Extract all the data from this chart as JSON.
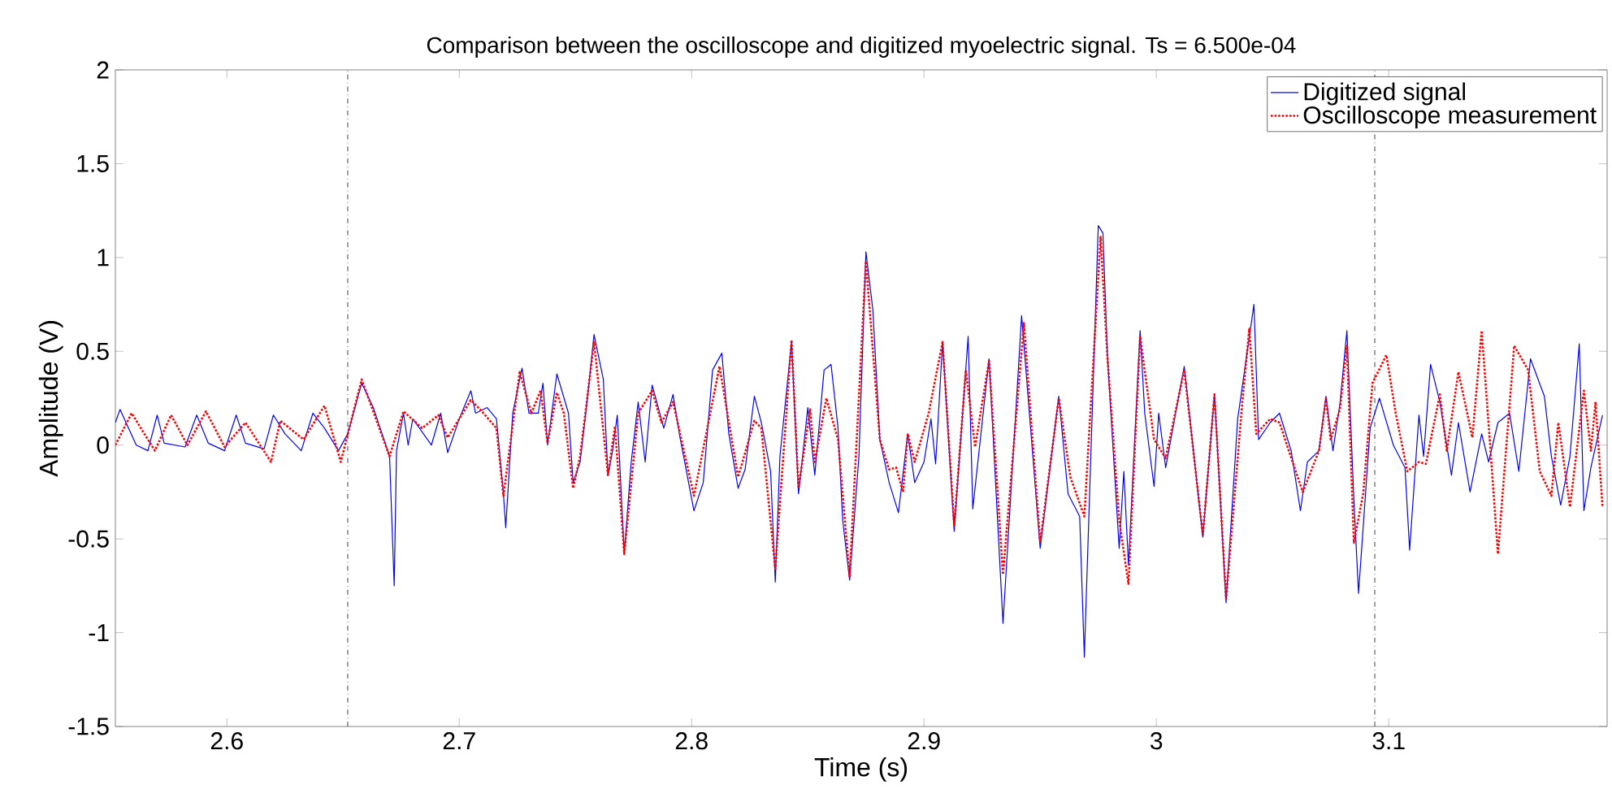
{
  "chart_data": {
    "type": "line",
    "title": "Comparison between the oscilloscope and digitized myoelectric signal. Ts = 6.500e-04",
    "xlabel": "Time (s)",
    "ylabel": "Amplitude (V)",
    "xlim": [
      2.552,
      3.194
    ],
    "ylim": [
      -1.5,
      2
    ],
    "xticks": [
      2.6,
      2.7,
      2.8,
      2.9,
      3,
      3.1
    ],
    "yticks": [
      -1.5,
      -1,
      -0.5,
      0,
      0.5,
      1,
      1.5,
      2
    ],
    "legend": "top right",
    "marker": "none",
    "ref_lines": [
      {
        "axis": "x",
        "value": 2.652,
        "color": "#404040",
        "line_style": "dashdot"
      },
      {
        "axis": "x",
        "value": 3.094,
        "color": "#404040",
        "line_style": "dashdot"
      }
    ],
    "series": [
      {
        "name": "Digitized signal",
        "color": "#0000ff",
        "line_style": "solid",
        "x": [
          2.552,
          2.554,
          2.561,
          2.566,
          2.57,
          2.573,
          2.582,
          2.587,
          2.592,
          2.599,
          2.604,
          2.608,
          2.616,
          2.62,
          2.625,
          2.632,
          2.637,
          2.642,
          2.648,
          2.652,
          2.658,
          2.663,
          2.67,
          2.672,
          2.673,
          2.676,
          2.678,
          2.68,
          2.688,
          2.692,
          2.695,
          2.7,
          2.705,
          2.707,
          2.712,
          2.716,
          2.719,
          2.72,
          2.723,
          2.727,
          2.73,
          2.734,
          2.736,
          2.738,
          2.742,
          2.747,
          2.749,
          2.752,
          2.755,
          2.758,
          2.762,
          2.764,
          2.766,
          2.768,
          2.771,
          2.774,
          2.777,
          2.78,
          2.783,
          2.785,
          2.788,
          2.792,
          2.795,
          2.801,
          2.805,
          2.809,
          2.813,
          2.816,
          2.82,
          2.823,
          2.827,
          2.83,
          2.834,
          2.836,
          2.838,
          2.843,
          2.846,
          2.85,
          2.853,
          2.857,
          2.86,
          2.863,
          2.865,
          2.868,
          2.872,
          2.875,
          2.878,
          2.881,
          2.885,
          2.889,
          2.893,
          2.896,
          2.9,
          2.903,
          2.905,
          2.908,
          2.913,
          2.919,
          2.921,
          2.928,
          2.934,
          2.942,
          2.95,
          2.958,
          2.962,
          2.967,
          2.969,
          2.975,
          2.977,
          2.979,
          2.984,
          2.986,
          2.988,
          2.993,
          2.995,
          2.999,
          3.001,
          3.004,
          3.012,
          3.02,
          3.025,
          3.03,
          3.035,
          3.042,
          3.044,
          3.049,
          3.053,
          3.058,
          3.062,
          3.065,
          3.07,
          3.073,
          3.076,
          3.079,
          3.082,
          3.085,
          3.087,
          3.092,
          3.096,
          3.102,
          3.107,
          3.109,
          3.113,
          3.115,
          3.118,
          3.122,
          3.127,
          3.13,
          3.135,
          3.14,
          3.143,
          3.147,
          3.152,
          3.156,
          3.161,
          3.167,
          3.17,
          3.174,
          3.178,
          3.182,
          3.184,
          3.187,
          3.192
        ],
        "values": [
          0.12,
          0.19,
          0,
          -0.03,
          0.16,
          0.01,
          -0.01,
          0.16,
          0.01,
          -0.03,
          0.16,
          0.01,
          -0.02,
          0.16,
          0.06,
          -0.03,
          0.17,
          0.09,
          -0.03,
          0.06,
          0.33,
          0.2,
          -0.06,
          -0.75,
          -0.03,
          0.17,
          0,
          0.14,
          0,
          0.17,
          -0.04,
          0.14,
          0.29,
          0.17,
          0.2,
          0.14,
          -0.26,
          -0.44,
          0.17,
          0.41,
          0.17,
          0.17,
          0.33,
          0,
          0.38,
          0.17,
          -0.2,
          -0.09,
          0.23,
          0.59,
          0.35,
          -0.16,
          -0.03,
          0.16,
          -0.58,
          -0.09,
          0.23,
          -0.09,
          0.32,
          0.23,
          0.09,
          0.27,
          0.04,
          -0.35,
          -0.2,
          0.4,
          0.49,
          0.06,
          -0.23,
          -0.13,
          0.26,
          0.12,
          -0.14,
          -0.73,
          -0.06,
          0.55,
          -0.26,
          0.2,
          -0.16,
          0.4,
          0.43,
          0.09,
          -0.4,
          -0.72,
          -0.06,
          1.03,
          0.72,
          0.03,
          -0.2,
          -0.36,
          0.06,
          -0.2,
          -0.09,
          0.14,
          -0.1,
          0.55,
          -0.46,
          0.58,
          -0.34,
          0.46,
          -0.95,
          0.69,
          -0.55,
          0.26,
          -0.26,
          -0.38,
          -1.13,
          1.17,
          1.13,
          0.46,
          -0.55,
          -0.14,
          -0.64,
          0.61,
          0.17,
          -0.22,
          0.17,
          -0.12,
          0.42,
          -0.49,
          0.27,
          -0.84,
          0.14,
          0.75,
          0.03,
          0.12,
          0.17,
          -0.03,
          -0.35,
          -0.09,
          -0.03,
          0.26,
          -0.03,
          0.22,
          0.61,
          -0.29,
          -0.79,
          0.09,
          0.25,
          0,
          -0.12,
          -0.56,
          0.16,
          -0.06,
          0.43,
          0.23,
          -0.16,
          0.12,
          -0.25,
          0.06,
          -0.09,
          0.12,
          0.17,
          -0.14,
          0.46,
          0.26,
          -0.06,
          -0.32,
          -0.06,
          0.54,
          -0.35,
          -0.12,
          0.16
        ]
      },
      {
        "name": "Oscilloscope measurement",
        "color": "#ff0000",
        "line_style": "dotted",
        "x": [
          2.552,
          2.559,
          2.569,
          2.576,
          2.583,
          2.591,
          2.599,
          2.608,
          2.619,
          2.623,
          2.633,
          2.642,
          2.649,
          2.658,
          2.67,
          2.676,
          2.684,
          2.691,
          2.695,
          2.705,
          2.709,
          2.716,
          2.719,
          2.726,
          2.731,
          2.735,
          2.738,
          2.742,
          2.745,
          2.749,
          2.752,
          2.758,
          2.764,
          2.767,
          2.771,
          2.777,
          2.783,
          2.787,
          2.792,
          2.801,
          2.812,
          2.82,
          2.827,
          2.83,
          2.836,
          2.843,
          2.846,
          2.851,
          2.853,
          2.858,
          2.863,
          2.868,
          2.875,
          2.881,
          2.885,
          2.888,
          2.891,
          2.893,
          2.896,
          2.902,
          2.908,
          2.913,
          2.918,
          2.922,
          2.928,
          2.934,
          2.943,
          2.95,
          2.958,
          2.963,
          2.969,
          2.976,
          2.979,
          2.984,
          2.988,
          2.993,
          2.999,
          3.004,
          3.012,
          3.02,
          3.025,
          3.03,
          3.037,
          3.04,
          3.043,
          3.049,
          3.053,
          3.057,
          3.063,
          3.07,
          3.073,
          3.075,
          3.079,
          3.082,
          3.085,
          3.089,
          3.093,
          3.099,
          3.103,
          3.108,
          3.113,
          3.116,
          3.122,
          3.125,
          3.13,
          3.136,
          3.14,
          3.144,
          3.147,
          3.154,
          3.16,
          3.165,
          3.17,
          3.173,
          3.178,
          3.184,
          3.187,
          3.189,
          3.192
        ],
        "values": [
          0,
          0.17,
          -0.03,
          0.16,
          0,
          0.18,
          -0.01,
          0.12,
          -0.09,
          0.13,
          0.03,
          0.21,
          -0.09,
          0.35,
          -0.06,
          0.18,
          0.09,
          0.16,
          0.04,
          0.24,
          0.19,
          0.09,
          -0.27,
          0.39,
          0.17,
          0.29,
          0.01,
          0.28,
          0.17,
          -0.23,
          -0.06,
          0.55,
          -0.16,
          0.1,
          -0.58,
          0.17,
          0.29,
          0.12,
          0.23,
          -0.27,
          0.42,
          -0.17,
          0.13,
          0.09,
          -0.66,
          0.56,
          -0.23,
          0.19,
          -0.09,
          0.25,
          0.03,
          -0.7,
          0.98,
          0.03,
          -0.13,
          -0.12,
          -0.25,
          0.06,
          -0.09,
          0.17,
          0.55,
          -0.43,
          0.4,
          -0.01,
          0.45,
          -0.69,
          0.65,
          -0.52,
          0.25,
          -0.17,
          -0.38,
          1.11,
          0.46,
          -0.4,
          -0.74,
          0.58,
          0.03,
          -0.07,
          0.4,
          -0.48,
          0.27,
          -0.82,
          0.23,
          0.62,
          0.06,
          0.14,
          0.12,
          -0.03,
          -0.25,
          -0.03,
          0.25,
          0.03,
          0.19,
          0.53,
          -0.52,
          -0.26,
          0.33,
          0.48,
          0.17,
          -0.14,
          -0.09,
          -0.1,
          0.27,
          -0.03,
          0.39,
          0.04,
          0.61,
          -0.06,
          -0.58,
          0.53,
          0.4,
          -0.14,
          -0.27,
          0.12,
          -0.33,
          0.29,
          -0.03,
          0.23,
          -0.33
        ]
      }
    ]
  }
}
